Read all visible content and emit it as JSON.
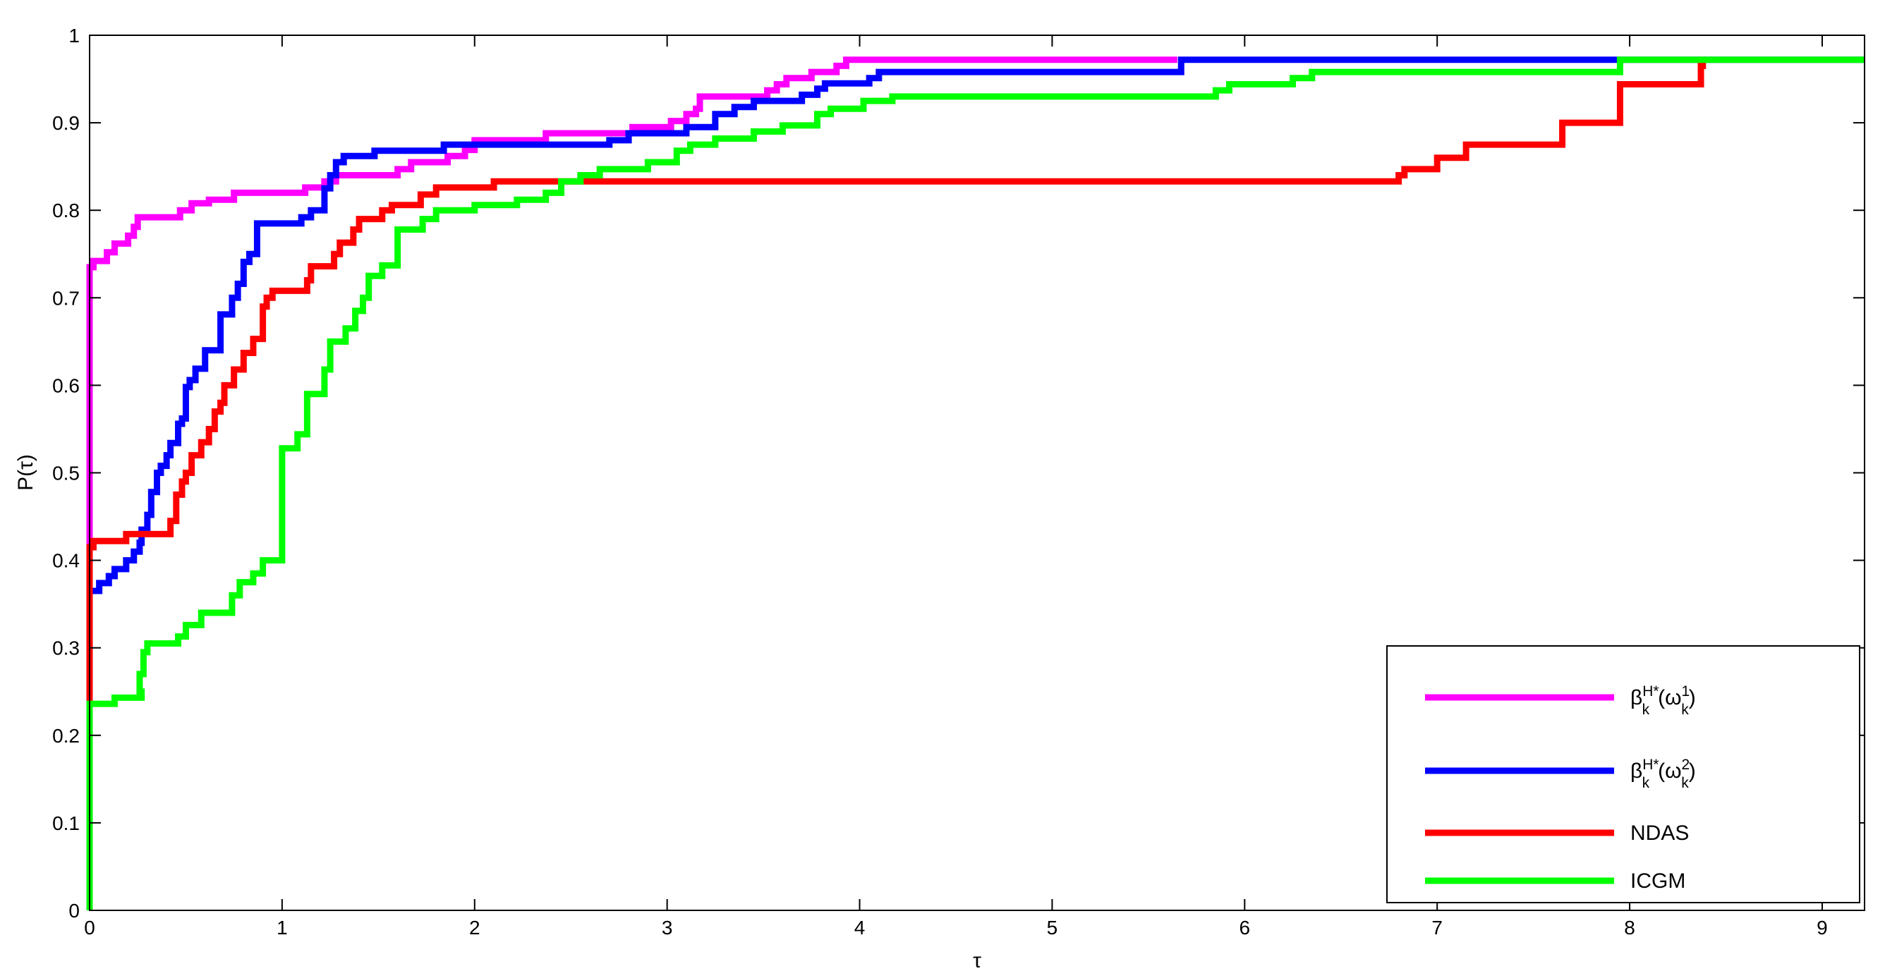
{
  "chart_data": {
    "type": "line",
    "subtype": "step",
    "title": "",
    "xlabel": "τ",
    "ylabel": "P(τ)",
    "xlim": [
      0,
      9.22
    ],
    "ylim": [
      0,
      1
    ],
    "xticks": [
      "0",
      "1",
      "2",
      "3",
      "4",
      "5",
      "6",
      "7",
      "8",
      "9"
    ],
    "yticks": [
      "0",
      "0.1",
      "0.2",
      "0.3",
      "0.4",
      "0.5",
      "0.6",
      "0.7",
      "0.8",
      "0.9",
      "1"
    ],
    "grid": false,
    "legend_position": "bottom-right",
    "series": [
      {
        "name": "β_k^{H*}(ω_k^1)",
        "color": "#ff00ff",
        "points": [
          [
            0,
            0
          ],
          [
            0,
            0.735
          ],
          [
            0.02,
            0.742
          ],
          [
            0.09,
            0.752
          ],
          [
            0.13,
            0.762
          ],
          [
            0.2,
            0.771
          ],
          [
            0.23,
            0.781
          ],
          [
            0.25,
            0.792
          ],
          [
            0.47,
            0.8
          ],
          [
            0.53,
            0.808
          ],
          [
            0.62,
            0.812
          ],
          [
            0.75,
            0.82
          ],
          [
            1.12,
            0.826
          ],
          [
            1.22,
            0.833
          ],
          [
            1.28,
            0.84
          ],
          [
            1.6,
            0.847
          ],
          [
            1.67,
            0.855
          ],
          [
            1.86,
            0.862
          ],
          [
            1.95,
            0.869
          ],
          [
            2.0,
            0.88
          ],
          [
            2.37,
            0.888
          ],
          [
            2.82,
            0.895
          ],
          [
            3.02,
            0.902
          ],
          [
            3.1,
            0.91
          ],
          [
            3.15,
            0.916
          ],
          [
            3.17,
            0.93
          ],
          [
            3.52,
            0.937
          ],
          [
            3.57,
            0.944
          ],
          [
            3.62,
            0.951
          ],
          [
            3.75,
            0.958
          ],
          [
            3.88,
            0.965
          ],
          [
            3.93,
            0.972
          ],
          [
            5.65,
            0.972
          ]
        ]
      },
      {
        "name": "β_k^{H*}(ω_k^2)",
        "color": "#0000ff",
        "points": [
          [
            0,
            0
          ],
          [
            0,
            0.365
          ],
          [
            0.05,
            0.374
          ],
          [
            0.1,
            0.382
          ],
          [
            0.13,
            0.39
          ],
          [
            0.19,
            0.4
          ],
          [
            0.23,
            0.41
          ],
          [
            0.26,
            0.42
          ],
          [
            0.27,
            0.435
          ],
          [
            0.3,
            0.452
          ],
          [
            0.32,
            0.478
          ],
          [
            0.35,
            0.5
          ],
          [
            0.37,
            0.508
          ],
          [
            0.4,
            0.52
          ],
          [
            0.42,
            0.534
          ],
          [
            0.46,
            0.556
          ],
          [
            0.48,
            0.562
          ],
          [
            0.5,
            0.598
          ],
          [
            0.52,
            0.606
          ],
          [
            0.55,
            0.619
          ],
          [
            0.6,
            0.64
          ],
          [
            0.68,
            0.681
          ],
          [
            0.74,
            0.7
          ],
          [
            0.77,
            0.716
          ],
          [
            0.8,
            0.741
          ],
          [
            0.83,
            0.75
          ],
          [
            0.87,
            0.785
          ],
          [
            1.1,
            0.792
          ],
          [
            1.15,
            0.8
          ],
          [
            1.22,
            0.825
          ],
          [
            1.25,
            0.84
          ],
          [
            1.28,
            0.855
          ],
          [
            1.32,
            0.862
          ],
          [
            1.48,
            0.868
          ],
          [
            1.84,
            0.875
          ],
          [
            2.7,
            0.88
          ],
          [
            2.8,
            0.888
          ],
          [
            3.1,
            0.895
          ],
          [
            3.25,
            0.91
          ],
          [
            3.35,
            0.918
          ],
          [
            3.45,
            0.925
          ],
          [
            3.7,
            0.932
          ],
          [
            3.78,
            0.939
          ],
          [
            3.82,
            0.945
          ],
          [
            4.05,
            0.951
          ],
          [
            4.1,
            0.958
          ],
          [
            5.67,
            0.972
          ],
          [
            9.22,
            0.972
          ]
        ]
      },
      {
        "name": "NDAS",
        "color": "#ff0000",
        "points": [
          [
            0,
            0
          ],
          [
            0,
            0.235
          ],
          [
            0,
            0.415
          ],
          [
            0.02,
            0.422
          ],
          [
            0.19,
            0.43
          ],
          [
            0.42,
            0.445
          ],
          [
            0.45,
            0.475
          ],
          [
            0.48,
            0.49
          ],
          [
            0.5,
            0.5
          ],
          [
            0.53,
            0.52
          ],
          [
            0.58,
            0.535
          ],
          [
            0.62,
            0.55
          ],
          [
            0.65,
            0.57
          ],
          [
            0.68,
            0.58
          ],
          [
            0.7,
            0.6
          ],
          [
            0.75,
            0.618
          ],
          [
            0.8,
            0.637
          ],
          [
            0.85,
            0.653
          ],
          [
            0.9,
            0.69
          ],
          [
            0.92,
            0.7
          ],
          [
            0.95,
            0.708
          ],
          [
            1.13,
            0.72
          ],
          [
            1.15,
            0.736
          ],
          [
            1.27,
            0.75
          ],
          [
            1.3,
            0.763
          ],
          [
            1.37,
            0.778
          ],
          [
            1.4,
            0.79
          ],
          [
            1.52,
            0.8
          ],
          [
            1.57,
            0.806
          ],
          [
            1.72,
            0.818
          ],
          [
            1.8,
            0.826
          ],
          [
            2.1,
            0.833
          ],
          [
            6.8,
            0.84
          ],
          [
            6.83,
            0.847
          ],
          [
            7.0,
            0.86
          ],
          [
            7.15,
            0.875
          ],
          [
            7.65,
            0.9
          ],
          [
            7.95,
            0.944
          ],
          [
            8.37,
            0.965
          ],
          [
            8.38,
            0.972
          ]
        ]
      },
      {
        "name": "ICGM",
        "color": "#00ff00",
        "points": [
          [
            0,
            0
          ],
          [
            0,
            0.236
          ],
          [
            0.13,
            0.243
          ],
          [
            0.27,
            0.25
          ],
          [
            0.26,
            0.27
          ],
          [
            0.28,
            0.295
          ],
          [
            0.3,
            0.305
          ],
          [
            0.46,
            0.313
          ],
          [
            0.5,
            0.326
          ],
          [
            0.58,
            0.34
          ],
          [
            0.74,
            0.36
          ],
          [
            0.78,
            0.375
          ],
          [
            0.85,
            0.385
          ],
          [
            0.9,
            0.4
          ],
          [
            1.0,
            0.528
          ],
          [
            1.08,
            0.544
          ],
          [
            1.13,
            0.59
          ],
          [
            1.22,
            0.618
          ],
          [
            1.25,
            0.65
          ],
          [
            1.33,
            0.665
          ],
          [
            1.38,
            0.685
          ],
          [
            1.42,
            0.7
          ],
          [
            1.45,
            0.725
          ],
          [
            1.52,
            0.737
          ],
          [
            1.6,
            0.778
          ],
          [
            1.73,
            0.79
          ],
          [
            1.8,
            0.8
          ],
          [
            2.0,
            0.806
          ],
          [
            2.22,
            0.812
          ],
          [
            2.37,
            0.82
          ],
          [
            2.45,
            0.833
          ],
          [
            2.55,
            0.84
          ],
          [
            2.65,
            0.847
          ],
          [
            2.9,
            0.855
          ],
          [
            3.05,
            0.868
          ],
          [
            3.12,
            0.875
          ],
          [
            3.25,
            0.882
          ],
          [
            3.45,
            0.89
          ],
          [
            3.6,
            0.897
          ],
          [
            3.78,
            0.91
          ],
          [
            3.85,
            0.916
          ],
          [
            4.02,
            0.925
          ],
          [
            4.17,
            0.93
          ],
          [
            5.85,
            0.937
          ],
          [
            5.92,
            0.944
          ],
          [
            6.25,
            0.951
          ],
          [
            6.35,
            0.958
          ],
          [
            7.95,
            0.972
          ],
          [
            9.22,
            0.972
          ]
        ]
      }
    ]
  }
}
